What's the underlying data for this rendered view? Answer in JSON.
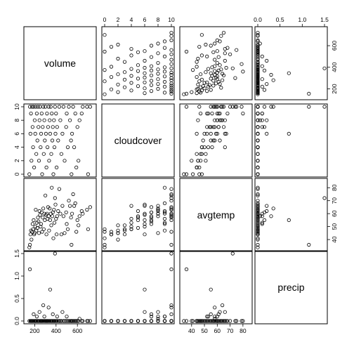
{
  "chart_data": {
    "type": "scatter",
    "variables": [
      "volume",
      "cloudcover",
      "avgtemp",
      "precip"
    ],
    "ticks": {
      "volume": [
        200,
        400,
        600
      ],
      "cloudcover": [
        0,
        2,
        4,
        6,
        8,
        10
      ],
      "avgtemp": [
        40,
        50,
        60,
        70,
        80
      ],
      "precip": [
        0.0,
        0.5,
        1.0,
        1.5
      ]
    },
    "tick_labels": {
      "volume": [
        "200",
        "400",
        "600"
      ],
      "cloudcover": [
        "0",
        "2",
        "4",
        "6",
        "8",
        "10"
      ],
      "avgtemp": [
        "40",
        "50",
        "60",
        "70",
        "80"
      ],
      "precip": [
        "0.0",
        "0.5",
        "1.0",
        "1.5"
      ]
    },
    "ranges": {
      "volume": [
        125,
        750
      ],
      "cloudcover": [
        0,
        10
      ],
      "avgtemp": [
        33,
        85
      ],
      "precip": [
        0,
        1.5
      ]
    },
    "rows": [
      [
        720,
        10,
        65,
        0.0
      ],
      [
        690,
        10,
        63,
        0.0
      ],
      [
        650,
        10,
        60,
        0.0
      ],
      [
        640,
        9,
        62,
        0.0
      ],
      [
        620,
        8,
        58,
        0.05
      ],
      [
        600,
        7,
        55,
        0.0
      ],
      [
        580,
        9,
        68,
        0.0
      ],
      [
        560,
        10,
        75,
        0.0
      ],
      [
        550,
        6,
        60,
        0.0
      ],
      [
        540,
        5,
        57,
        0.0
      ],
      [
        530,
        8,
        66,
        0.0
      ],
      [
        520,
        10,
        70,
        0.0
      ],
      [
        510,
        4,
        48,
        0.0
      ],
      [
        500,
        9,
        52,
        0.1
      ],
      [
        495,
        7,
        61,
        0.0
      ],
      [
        480,
        2,
        45,
        0.0
      ],
      [
        470,
        10,
        58,
        0.0
      ],
      [
        460,
        6,
        66,
        0.2
      ],
      [
        450,
        3,
        44,
        0.0
      ],
      [
        440,
        8,
        60,
        0.0
      ],
      [
        430,
        10,
        79,
        0.0
      ],
      [
        420,
        5,
        62,
        0.0
      ],
      [
        410,
        7,
        58,
        0.1
      ],
      [
        405,
        1,
        44,
        0.0
      ],
      [
        400,
        9,
        56,
        0.0
      ],
      [
        395,
        6,
        67,
        0.0
      ],
      [
        390,
        10,
        72,
        1.5
      ],
      [
        385,
        4,
        53,
        0.0
      ],
      [
        380,
        8,
        63,
        0.0
      ],
      [
        375,
        0,
        41,
        0.0
      ],
      [
        370,
        7,
        61,
        0.15
      ],
      [
        365,
        5,
        58,
        0.0
      ],
      [
        360,
        9,
        80,
        0.0
      ],
      [
        355,
        3,
        51,
        0.0
      ],
      [
        350,
        10,
        60,
        0.0
      ],
      [
        345,
        6,
        55,
        0.7
      ],
      [
        340,
        8,
        64,
        0.0
      ],
      [
        335,
        2,
        47,
        0.0
      ],
      [
        330,
        10,
        58,
        0.3
      ],
      [
        325,
        7,
        65,
        0.0
      ],
      [
        320,
        4,
        56,
        0.0
      ],
      [
        315,
        9,
        60,
        0.0
      ],
      [
        310,
        1,
        44,
        0.0
      ],
      [
        305,
        6,
        59,
        0.0
      ],
      [
        300,
        10,
        74,
        0.0
      ],
      [
        295,
        5,
        55,
        0.0
      ],
      [
        290,
        8,
        60,
        0.1
      ],
      [
        285,
        3,
        48,
        0.0
      ],
      [
        280,
        10,
        64,
        0.35
      ],
      [
        275,
        7,
        57,
        0.0
      ],
      [
        270,
        0,
        46,
        0.0
      ],
      [
        265,
        9,
        61,
        0.0
      ],
      [
        260,
        6,
        52,
        0.0
      ],
      [
        255,
        4,
        50,
        0.0
      ],
      [
        250,
        10,
        59,
        0.0
      ],
      [
        245,
        8,
        62,
        0.2
      ],
      [
        240,
        2,
        45,
        0.0
      ],
      [
        235,
        7,
        54,
        0.0
      ],
      [
        230,
        10,
        57,
        0.0
      ],
      [
        225,
        5,
        49,
        0.0
      ],
      [
        220,
        9,
        53,
        0.1
      ],
      [
        215,
        3,
        47,
        0.0
      ],
      [
        210,
        10,
        63,
        0.0
      ],
      [
        205,
        6,
        50,
        0.0
      ],
      [
        200,
        8,
        45,
        0.0
      ],
      [
        195,
        1,
        44,
        0.0
      ],
      [
        190,
        10,
        55,
        0.15
      ],
      [
        185,
        4,
        48,
        0.0
      ],
      [
        180,
        7,
        52,
        0.0
      ],
      [
        175,
        10,
        46,
        0.0
      ],
      [
        170,
        2,
        40,
        0.0
      ],
      [
        165,
        9,
        47,
        0.0
      ],
      [
        160,
        6,
        44,
        0.0
      ],
      [
        155,
        10,
        36,
        1.15
      ],
      [
        150,
        0,
        34,
        0.0
      ],
      [
        700,
        0,
        48,
        0.0
      ],
      [
        610,
        2,
        51,
        0.0
      ],
      [
        590,
        1,
        46,
        0.0
      ],
      [
        570,
        4,
        66,
        0.0
      ],
      [
        545,
        0,
        36,
        0.0
      ]
    ]
  }
}
